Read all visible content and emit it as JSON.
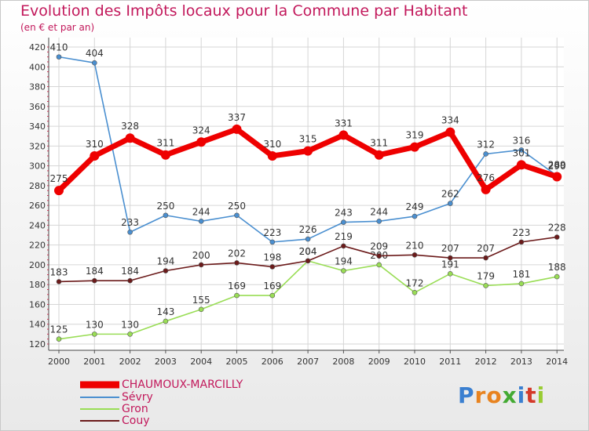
{
  "title": "Evolution des Impôts locaux pour la Commune par Habitant",
  "subtitle": "(en € et par an)",
  "logo_text": "Proxiti",
  "chart_data": {
    "type": "line",
    "x": [
      2000,
      2001,
      2002,
      2003,
      2004,
      2005,
      2006,
      2007,
      2008,
      2009,
      2010,
      2011,
      2012,
      2013,
      2014
    ],
    "ylim": [
      120,
      420
    ],
    "yticks": [
      120,
      140,
      160,
      180,
      200,
      220,
      240,
      260,
      280,
      300,
      320,
      340,
      360,
      380,
      400,
      420
    ],
    "grid": true,
    "legend": "bottom-left",
    "series": [
      {
        "name": "Sévry",
        "color": "#4a8fd0",
        "values": [
          410,
          404,
          233,
          250,
          244,
          250,
          223,
          226,
          243,
          244,
          249,
          262,
          312,
          316,
          290
        ]
      },
      {
        "name": "Gron",
        "color": "#99dd55",
        "values": [
          125,
          130,
          130,
          143,
          155,
          169,
          169,
          204,
          194,
          200,
          172,
          191,
          179,
          181,
          188
        ]
      },
      {
        "name": "Couy",
        "color": "#6b1a1a",
        "values": [
          183,
          184,
          184,
          194,
          200,
          202,
          198,
          204,
          219,
          209,
          210,
          207,
          207,
          223,
          228
        ]
      },
      {
        "name": "CHAUMOUX-MARCILLY",
        "color": "#ee0000",
        "values": [
          275,
          310,
          328,
          311,
          324,
          337,
          310,
          315,
          331,
          311,
          319,
          334,
          276,
          301,
          289
        ]
      }
    ]
  }
}
